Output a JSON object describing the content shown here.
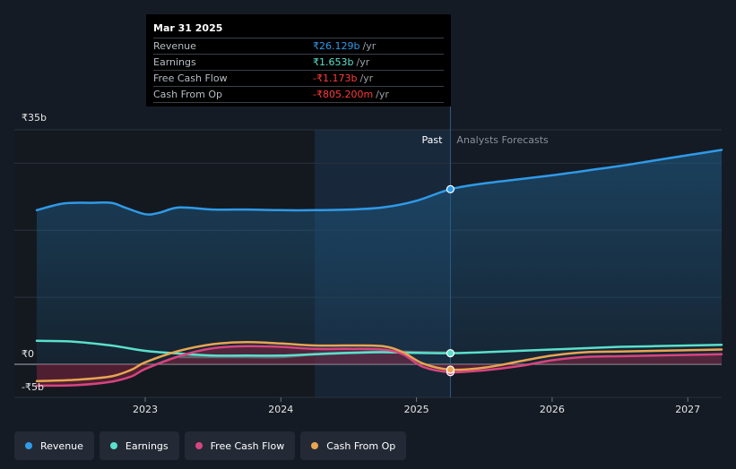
{
  "tooltip": {
    "date": "Mar 31 2025",
    "rows": [
      {
        "label": "Revenue",
        "value": "₹26.129b",
        "unit": "/yr",
        "color": "#2f9ae8"
      },
      {
        "label": "Earnings",
        "value": "₹1.653b",
        "unit": "/yr",
        "color": "#5ae0cc"
      },
      {
        "label": "Free Cash Flow",
        "value": "-₹1.173b",
        "unit": "/yr",
        "color": "#ff3a3a"
      },
      {
        "label": "Cash From Op",
        "value": "-₹805.200m",
        "unit": "/yr",
        "color": "#ff3a3a"
      }
    ]
  },
  "legend": [
    {
      "label": "Revenue",
      "color": "#2f9ae8"
    },
    {
      "label": "Earnings",
      "color": "#5ae0cc"
    },
    {
      "label": "Free Cash Flow",
      "color": "#d6457f"
    },
    {
      "label": "Cash From Op",
      "color": "#e8a552"
    }
  ],
  "chart_data": {
    "type": "line",
    "title": "",
    "xlabel": "",
    "ylabel": "",
    "past_label": "Past",
    "forecast_label": "Analysts Forecasts",
    "x_ticks": [
      {
        "label": "2023",
        "x": 2023.0
      },
      {
        "label": "2024",
        "x": 2024.0
      },
      {
        "label": "2025",
        "x": 2025.0
      },
      {
        "label": "2026",
        "x": 2026.0
      },
      {
        "label": "2027",
        "x": 2027.0
      }
    ],
    "y_ticks": [
      {
        "label": "₹35b",
        "y": 35
      },
      {
        "label": "₹0",
        "y": 0
      },
      {
        "label": "-₹5b",
        "y": -5
      }
    ],
    "xlim": [
      2022.2,
      2027.25
    ],
    "ylim": [
      -5,
      35
    ],
    "past_start": 2024.25,
    "cursor_x": 2025.25,
    "series": [
      {
        "name": "Revenue",
        "color": "#2f9ae8",
        "filled": true,
        "points": [
          [
            2022.2,
            23.0
          ],
          [
            2022.4,
            24.0
          ],
          [
            2022.6,
            24.1
          ],
          [
            2022.75,
            24.1
          ],
          [
            2022.85,
            23.4
          ],
          [
            2023.0,
            22.4
          ],
          [
            2023.1,
            22.6
          ],
          [
            2023.25,
            23.4
          ],
          [
            2023.5,
            23.1
          ],
          [
            2023.75,
            23.1
          ],
          [
            2024.0,
            23.0
          ],
          [
            2024.25,
            23.0
          ],
          [
            2024.5,
            23.1
          ],
          [
            2024.75,
            23.4
          ],
          [
            2025.0,
            24.4
          ],
          [
            2025.25,
            26.129
          ],
          [
            2025.5,
            27.0
          ],
          [
            2025.75,
            27.6
          ],
          [
            2026.0,
            28.2
          ],
          [
            2026.25,
            28.9
          ],
          [
            2026.5,
            29.6
          ],
          [
            2026.75,
            30.4
          ],
          [
            2027.0,
            31.2
          ],
          [
            2027.25,
            32.0
          ]
        ],
        "dot": [
          2025.25,
          26.129
        ]
      },
      {
        "name": "Earnings",
        "color": "#5ae0cc",
        "filled": false,
        "points": [
          [
            2022.2,
            3.5
          ],
          [
            2022.45,
            3.4
          ],
          [
            2022.75,
            2.8
          ],
          [
            2023.0,
            2.0
          ],
          [
            2023.25,
            1.6
          ],
          [
            2023.5,
            1.3
          ],
          [
            2023.75,
            1.3
          ],
          [
            2024.0,
            1.3
          ],
          [
            2024.25,
            1.5
          ],
          [
            2024.5,
            1.7
          ],
          [
            2024.75,
            1.8
          ],
          [
            2025.0,
            1.7
          ],
          [
            2025.25,
            1.653
          ],
          [
            2025.5,
            1.8
          ],
          [
            2025.75,
            2.0
          ],
          [
            2026.0,
            2.2
          ],
          [
            2026.25,
            2.4
          ],
          [
            2026.5,
            2.6
          ],
          [
            2026.75,
            2.7
          ],
          [
            2027.0,
            2.8
          ],
          [
            2027.25,
            2.9
          ]
        ],
        "dot": [
          2025.25,
          1.653
        ]
      },
      {
        "name": "Free Cash Flow",
        "color": "#d6457f",
        "filled": true,
        "points": [
          [
            2022.2,
            -3.2
          ],
          [
            2022.5,
            -3.1
          ],
          [
            2022.75,
            -2.6
          ],
          [
            2022.9,
            -1.8
          ],
          [
            2023.0,
            -0.7
          ],
          [
            2023.25,
            1.2
          ],
          [
            2023.5,
            2.4
          ],
          [
            2023.75,
            2.7
          ],
          [
            2024.0,
            2.6
          ],
          [
            2024.25,
            2.3
          ],
          [
            2024.5,
            2.3
          ],
          [
            2024.75,
            2.2
          ],
          [
            2024.9,
            1.5
          ],
          [
            2025.05,
            -0.4
          ],
          [
            2025.25,
            -1.173
          ],
          [
            2025.5,
            -0.9
          ],
          [
            2025.75,
            -0.3
          ],
          [
            2026.0,
            0.6
          ],
          [
            2026.25,
            1.1
          ],
          [
            2026.5,
            1.2
          ],
          [
            2026.75,
            1.3
          ],
          [
            2027.0,
            1.4
          ],
          [
            2027.25,
            1.5
          ]
        ],
        "dot": [
          2025.25,
          -1.173
        ]
      },
      {
        "name": "Cash From Op",
        "color": "#e8a552",
        "filled": false,
        "points": [
          [
            2022.2,
            -2.5
          ],
          [
            2022.5,
            -2.3
          ],
          [
            2022.75,
            -1.8
          ],
          [
            2022.9,
            -0.8
          ],
          [
            2023.0,
            0.3
          ],
          [
            2023.25,
            2.0
          ],
          [
            2023.5,
            3.0
          ],
          [
            2023.75,
            3.3
          ],
          [
            2024.0,
            3.1
          ],
          [
            2024.25,
            2.8
          ],
          [
            2024.5,
            2.8
          ],
          [
            2024.75,
            2.7
          ],
          [
            2024.9,
            1.8
          ],
          [
            2025.05,
            0.1
          ],
          [
            2025.25,
            -0.805
          ],
          [
            2025.5,
            -0.5
          ],
          [
            2025.75,
            0.4
          ],
          [
            2026.0,
            1.3
          ],
          [
            2026.25,
            1.8
          ],
          [
            2026.5,
            1.9
          ],
          [
            2026.75,
            2.0
          ],
          [
            2027.0,
            2.1
          ],
          [
            2027.25,
            2.2
          ]
        ],
        "dot": [
          2025.25,
          -0.805
        ]
      }
    ],
    "grey_band_points": [
      [
        2023.25,
        1.1
      ],
      [
        2023.5,
        1.1
      ],
      [
        2023.75,
        1.1
      ],
      [
        2024.0,
        1.1
      ],
      [
        2024.25,
        1.5
      ],
      [
        2024.5,
        1.7
      ],
      [
        2024.75,
        1.9
      ],
      [
        2025.0,
        1.8
      ],
      [
        2025.25,
        1.7
      ]
    ]
  }
}
